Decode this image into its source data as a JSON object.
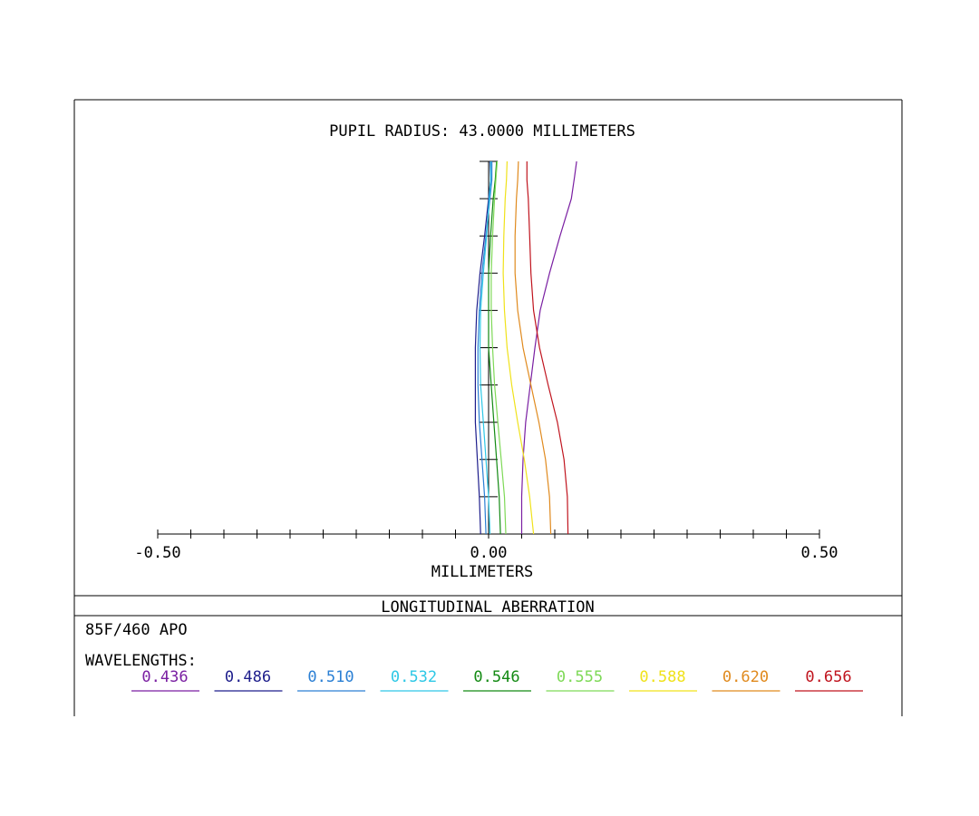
{
  "chart_data": {
    "type": "line",
    "title": "PUPIL RADIUS: 43.0000 MILLIMETERS",
    "xlabel": "MILLIMETERS",
    "ylabel": "",
    "xlim": [
      -0.5,
      0.5
    ],
    "ylim": [
      0,
      1
    ],
    "x_tick_labels": [
      {
        "value": -0.5,
        "label": "-0.50"
      },
      {
        "value": 0.0,
        "label": "0.00"
      },
      {
        "value": 0.5,
        "label": "0.50"
      }
    ],
    "x_minor_step": 0.05,
    "y_minor_step": 0.1,
    "series": [
      {
        "name": "0.436",
        "color": "#7a1fa2",
        "points": [
          [
            0.05,
            0.0
          ],
          [
            0.05,
            0.1
          ],
          [
            0.052,
            0.2
          ],
          [
            0.056,
            0.3
          ],
          [
            0.063,
            0.4
          ],
          [
            0.07,
            0.5
          ],
          [
            0.078,
            0.6
          ],
          [
            0.092,
            0.7
          ],
          [
            0.108,
            0.8
          ],
          [
            0.125,
            0.9
          ],
          [
            0.13,
            0.96
          ],
          [
            0.133,
            1.0
          ]
        ]
      },
      {
        "name": "0.486",
        "color": "#1e1e8c",
        "points": [
          [
            -0.012,
            0.0
          ],
          [
            -0.014,
            0.1
          ],
          [
            -0.017,
            0.2
          ],
          [
            -0.02,
            0.3
          ],
          [
            -0.02,
            0.4
          ],
          [
            -0.02,
            0.5
          ],
          [
            -0.018,
            0.6
          ],
          [
            -0.013,
            0.7
          ],
          [
            -0.006,
            0.8
          ],
          [
            0.0,
            0.9
          ],
          [
            0.003,
            0.95
          ],
          [
            0.002,
            1.0
          ]
        ]
      },
      {
        "name": "0.510",
        "color": "#2a7fd4",
        "points": [
          [
            -0.004,
            0.0
          ],
          [
            -0.006,
            0.1
          ],
          [
            -0.01,
            0.2
          ],
          [
            -0.014,
            0.3
          ],
          [
            -0.016,
            0.4
          ],
          [
            -0.016,
            0.5
          ],
          [
            -0.014,
            0.6
          ],
          [
            -0.01,
            0.7
          ],
          [
            -0.004,
            0.8
          ],
          [
            0.002,
            0.9
          ],
          [
            0.005,
            0.95
          ],
          [
            0.005,
            1.0
          ]
        ]
      },
      {
        "name": "0.532",
        "color": "#2ec8e6",
        "points": [
          [
            0.002,
            0.0
          ],
          [
            0.0,
            0.1
          ],
          [
            -0.004,
            0.2
          ],
          [
            -0.008,
            0.3
          ],
          [
            -0.012,
            0.4
          ],
          [
            -0.013,
            0.5
          ],
          [
            -0.012,
            0.6
          ],
          [
            -0.008,
            0.7
          ],
          [
            -0.003,
            0.8
          ],
          [
            0.001,
            0.9
          ],
          [
            0.003,
            0.95
          ],
          [
            0.003,
            1.0
          ]
        ]
      },
      {
        "name": "0.546",
        "color": "#138a13",
        "points": [
          [
            0.018,
            0.0
          ],
          [
            0.016,
            0.1
          ],
          [
            0.012,
            0.2
          ],
          [
            0.008,
            0.3
          ],
          [
            0.004,
            0.4
          ],
          [
            0.0,
            0.5
          ],
          [
            0.0,
            0.6
          ],
          [
            0.0,
            0.7
          ],
          [
            0.003,
            0.8
          ],
          [
            0.007,
            0.9
          ],
          [
            0.01,
            0.95
          ],
          [
            0.012,
            1.0
          ]
        ]
      },
      {
        "name": "0.555",
        "color": "#7ed957",
        "points": [
          [
            0.026,
            0.0
          ],
          [
            0.024,
            0.1
          ],
          [
            0.019,
            0.2
          ],
          [
            0.014,
            0.3
          ],
          [
            0.009,
            0.4
          ],
          [
            0.006,
            0.5
          ],
          [
            0.004,
            0.6
          ],
          [
            0.004,
            0.7
          ],
          [
            0.006,
            0.8
          ],
          [
            0.009,
            0.9
          ],
          [
            0.011,
            0.95
          ],
          [
            0.013,
            1.0
          ]
        ]
      },
      {
        "name": "0.588",
        "color": "#f0e21a",
        "points": [
          [
            0.068,
            0.0
          ],
          [
            0.062,
            0.1
          ],
          [
            0.054,
            0.2
          ],
          [
            0.044,
            0.3
          ],
          [
            0.035,
            0.4
          ],
          [
            0.028,
            0.5
          ],
          [
            0.024,
            0.6
          ],
          [
            0.022,
            0.7
          ],
          [
            0.023,
            0.8
          ],
          [
            0.025,
            0.9
          ],
          [
            0.027,
            0.95
          ],
          [
            0.028,
            1.0
          ]
        ]
      },
      {
        "name": "0.620",
        "color": "#e08a1e",
        "points": [
          [
            0.094,
            0.0
          ],
          [
            0.092,
            0.1
          ],
          [
            0.086,
            0.2
          ],
          [
            0.076,
            0.3
          ],
          [
            0.064,
            0.4
          ],
          [
            0.052,
            0.5
          ],
          [
            0.044,
            0.6
          ],
          [
            0.04,
            0.7
          ],
          [
            0.04,
            0.8
          ],
          [
            0.042,
            0.9
          ],
          [
            0.044,
            0.95
          ],
          [
            0.045,
            1.0
          ]
        ]
      },
      {
        "name": "0.656",
        "color": "#c0141e",
        "points": [
          [
            0.12,
            0.0
          ],
          [
            0.119,
            0.1
          ],
          [
            0.114,
            0.2
          ],
          [
            0.104,
            0.3
          ],
          [
            0.09,
            0.4
          ],
          [
            0.077,
            0.5
          ],
          [
            0.068,
            0.6
          ],
          [
            0.064,
            0.7
          ],
          [
            0.062,
            0.8
          ],
          [
            0.06,
            0.9
          ],
          [
            0.058,
            0.95
          ],
          [
            0.058,
            1.0
          ]
        ]
      }
    ]
  },
  "footer": {
    "plot_type": "LONGITUDINAL ABERRATION",
    "design_name": "85F/460 APO",
    "wavelengths_label": "WAVELENGTHS:"
  }
}
